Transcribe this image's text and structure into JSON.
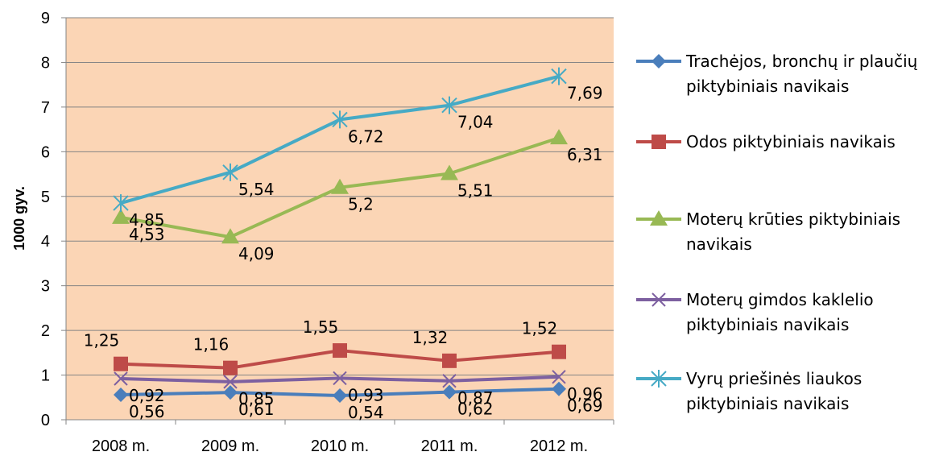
{
  "chart_data": {
    "type": "line",
    "categories": [
      "2008 m.",
      "2009 m.",
      "2010 m.",
      "2011 m.",
      "2012 m."
    ],
    "ylabel": "1000 gyv.",
    "ylim": [
      0,
      9
    ],
    "yticks": [
      0,
      1,
      2,
      3,
      4,
      5,
      6,
      7,
      8,
      9
    ],
    "plot_background": "#fbd5b5",
    "grid": "horizontal",
    "legend_position": "right",
    "series": [
      {
        "name": "Trachėjos, bronchų ir plaučių piktybiniais navikais",
        "legend_lines": [
          "Trachėjos, bronchų ir plaučių",
          "piktybiniais navikais"
        ],
        "color": "#4a7ebb",
        "marker": "diamond",
        "values": [
          0.56,
          0.61,
          0.54,
          0.62,
          0.69
        ],
        "labels": [
          "0,56",
          "0,61",
          "0,54",
          "0,62",
          "0,69"
        ]
      },
      {
        "name": "Odos piktybiniais navikais",
        "legend_lines": [
          "Odos piktybiniais navikais"
        ],
        "color": "#be4b48",
        "marker": "square",
        "values": [
          1.25,
          1.16,
          1.55,
          1.32,
          1.52
        ],
        "labels": [
          "1,25",
          "1,16",
          "1,55",
          "1,32",
          "1,52"
        ]
      },
      {
        "name": "Moterų krūties piktybiniais navikais",
        "legend_lines": [
          "Moterų krūties piktybiniais",
          "navikais"
        ],
        "color": "#98b954",
        "marker": "triangle",
        "values": [
          4.53,
          4.09,
          5.2,
          5.51,
          6.31
        ],
        "labels": [
          "4,53",
          "4,09",
          "5,2",
          "5,51",
          "6,31"
        ]
      },
      {
        "name": "Moterų gimdos kaklelio piktybiniais navikais",
        "legend_lines": [
          "Moterų gimdos kaklelio",
          "piktybiniais navikais"
        ],
        "color": "#7d60a0",
        "marker": "x",
        "values": [
          0.92,
          0.85,
          0.93,
          0.87,
          0.96
        ],
        "labels": [
          "0,92",
          "0,85",
          "0,93",
          "0,87",
          "0,96"
        ]
      },
      {
        "name": "Vyrų priešinės liaukos piktybiniais navikais",
        "legend_lines": [
          "Vyrų priešinės liaukos",
          "piktybiniais navikais"
        ],
        "color": "#46aac5",
        "marker": "star",
        "values": [
          4.85,
          5.54,
          6.72,
          7.04,
          7.69
        ],
        "labels": [
          "4,85",
          "5,54",
          "6,72",
          "7,04",
          "7,69"
        ]
      }
    ]
  }
}
